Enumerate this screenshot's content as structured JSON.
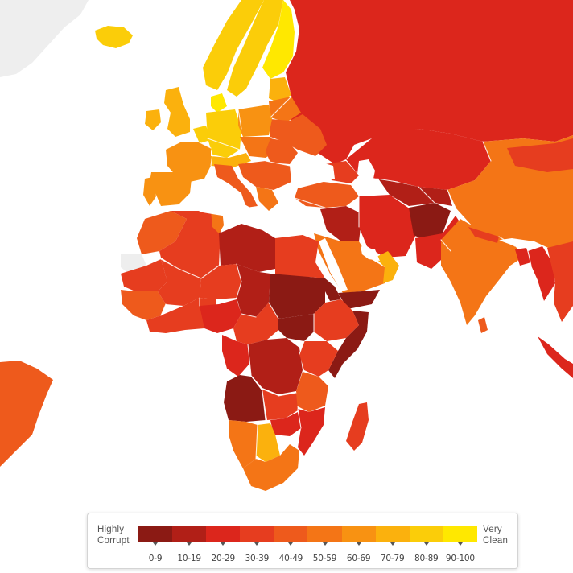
{
  "legend": {
    "low_label_line1": "Highly",
    "low_label_line2": "Corrupt",
    "high_label_line1": "Very",
    "high_label_line2": "Clean",
    "ranges": [
      {
        "label": "0-9",
        "color": "#8b1a14"
      },
      {
        "label": "10-19",
        "color": "#b11f17"
      },
      {
        "label": "20-29",
        "color": "#dc261c"
      },
      {
        "label": "30-39",
        "color": "#e63d1f"
      },
      {
        "label": "40-49",
        "color": "#ee5a1c"
      },
      {
        "label": "50-59",
        "color": "#f47516"
      },
      {
        "label": "60-69",
        "color": "#f89212"
      },
      {
        "label": "70-79",
        "color": "#fbb10d"
      },
      {
        "label": "80-89",
        "color": "#fbcd09"
      },
      {
        "label": "90-100",
        "color": "#ffe800"
      }
    ]
  },
  "map_colors": {
    "ocean": "#ffffff",
    "no_data": "#eeeeee",
    "border": "#ffffff"
  }
}
